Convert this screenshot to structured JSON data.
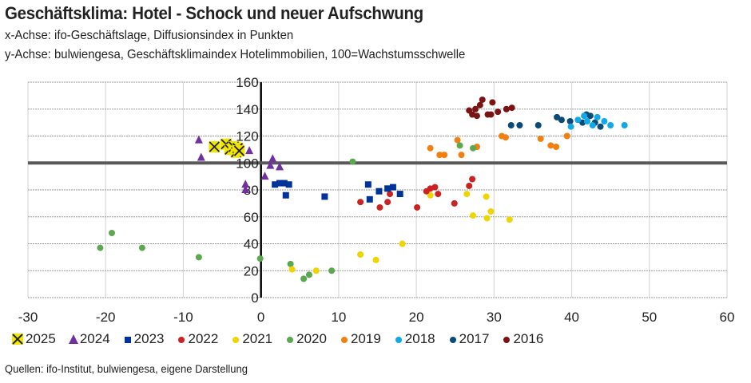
{
  "title": "Geschäftsklima: Hotel - Schock und neuer Aufschwung",
  "subtitle_x": "x-Achse: ifo-Geschäftslage, Diffusionsindex in Punkten",
  "subtitle_y": "y-Achse: bulwiengesa, Geschäftsklimaindex Hotelimmobilien, 100=Wachstumsschwelle",
  "source": "Quellen: ifo-Institut, bulwiengesa, eigene Darstellung",
  "chart_data": {
    "type": "scatter",
    "title": "Geschäftsklima: Hotel - Schock und neuer Aufschwung",
    "xlabel": "ifo-Geschäftslage, Diffusionsindex in Punkten",
    "ylabel": "bulwiengesa, Geschäftsklimaindex Hotelimmobilien, 100=Wachstumsschwelle",
    "xlim": [
      -30,
      60
    ],
    "ylim": [
      0,
      160
    ],
    "x_ticks": [
      "-30",
      "-20",
      "-10",
      "0",
      "10",
      "20",
      "30",
      "40",
      "50",
      "60"
    ],
    "y_ticks": [
      "0",
      "20",
      "40",
      "60",
      "80",
      "100",
      "120",
      "140",
      "160"
    ],
    "reference_line_y": 100,
    "grid": true,
    "legend_position": "bottom",
    "series": [
      {
        "name": "2025",
        "color": "#f2e600",
        "marker": "x",
        "points": [
          [
            -6,
            112
          ],
          [
            -4.5,
            114
          ],
          [
            -4,
            110
          ],
          [
            -3.5,
            112
          ],
          [
            -3.2,
            108
          ],
          [
            -3,
            111
          ],
          [
            -2.8,
            109
          ]
        ]
      },
      {
        "name": "2024",
        "color": "#7030a0",
        "marker": "triangle",
        "points": [
          [
            -8,
            117
          ],
          [
            -7.7,
            104
          ],
          [
            -6,
            113
          ],
          [
            -3,
            107
          ],
          [
            -1.5,
            109
          ],
          [
            -2,
            84
          ],
          [
            -2,
            80
          ],
          [
            0.5,
            90
          ],
          [
            1.5,
            103
          ],
          [
            1.2,
            98
          ],
          [
            2.4,
            97
          ]
        ]
      },
      {
        "name": "2023",
        "color": "#003399",
        "marker": "square",
        "points": [
          [
            1.8,
            84
          ],
          [
            2.4,
            85
          ],
          [
            3,
            85
          ],
          [
            3.6,
            84
          ],
          [
            3.2,
            76
          ],
          [
            8.2,
            75
          ],
          [
            13.8,
            84
          ],
          [
            14,
            73
          ],
          [
            15.2,
            79
          ],
          [
            16.3,
            81
          ],
          [
            17,
            82
          ],
          [
            17.9,
            77
          ]
        ]
      },
      {
        "name": "2022",
        "color": "#cc2222",
        "marker": "circle",
        "points": [
          [
            12.8,
            71
          ],
          [
            15.3,
            67
          ],
          [
            16.3,
            71
          ],
          [
            16.6,
            77
          ],
          [
            20.1,
            67
          ],
          [
            21.3,
            79
          ],
          [
            21.8,
            81
          ],
          [
            22.4,
            82
          ],
          [
            22.8,
            77
          ],
          [
            24.9,
            70
          ],
          [
            27.2,
            88
          ],
          [
            26.8,
            83
          ]
        ]
      },
      {
        "name": "2021",
        "color": "#eed500",
        "marker": "circle",
        "points": [
          [
            4,
            21
          ],
          [
            7.1,
            20
          ],
          [
            12.8,
            32
          ],
          [
            14.8,
            28
          ],
          [
            18.2,
            40
          ],
          [
            21.8,
            76
          ],
          [
            26.5,
            77
          ],
          [
            27.3,
            61
          ],
          [
            29,
            75
          ],
          [
            29.1,
            59
          ],
          [
            29.6,
            64
          ],
          [
            32,
            58
          ]
        ]
      },
      {
        "name": "2020",
        "color": "#5ba84e",
        "marker": "circle",
        "points": [
          [
            -20.7,
            37
          ],
          [
            -19.2,
            48
          ],
          [
            -15.3,
            37
          ],
          [
            -8,
            30
          ],
          [
            -0.1,
            29
          ],
          [
            3.8,
            25
          ],
          [
            5.5,
            14
          ],
          [
            6.2,
            17
          ],
          [
            9.1,
            20
          ],
          [
            11.8,
            101
          ],
          [
            25.6,
            113
          ],
          [
            27.3,
            111
          ]
        ]
      },
      {
        "name": "2019",
        "color": "#f08010",
        "marker": "circle",
        "points": [
          [
            21.8,
            111
          ],
          [
            23,
            106
          ],
          [
            23.6,
            106
          ],
          [
            25.3,
            117
          ],
          [
            25.8,
            106
          ],
          [
            27.8,
            112
          ],
          [
            31,
            120
          ],
          [
            31.5,
            119
          ],
          [
            36,
            118
          ],
          [
            37.3,
            113
          ],
          [
            38,
            112
          ],
          [
            39.4,
            120
          ]
        ]
      },
      {
        "name": "2018",
        "color": "#10a8e8",
        "marker": "circle",
        "points": [
          [
            39.9,
            127
          ],
          [
            40.8,
            132
          ],
          [
            41.6,
            135
          ],
          [
            42,
            131
          ],
          [
            42.7,
            128
          ],
          [
            43.3,
            134
          ],
          [
            44.2,
            131
          ],
          [
            45,
            128
          ],
          [
            46.8,
            128
          ]
        ]
      },
      {
        "name": "2017",
        "color": "#0a4a78",
        "marker": "circle",
        "points": [
          [
            32.2,
            128
          ],
          [
            33.3,
            128
          ],
          [
            35.7,
            128
          ],
          [
            38.1,
            134
          ],
          [
            38.7,
            132
          ],
          [
            39.8,
            131
          ],
          [
            41.4,
            130
          ],
          [
            41.9,
            136
          ],
          [
            42.4,
            135
          ],
          [
            43,
            130
          ],
          [
            43.7,
            127
          ]
        ]
      },
      {
        "name": "2016",
        "color": "#7a1414",
        "marker": "circle",
        "points": [
          [
            26.8,
            139
          ],
          [
            27.2,
            136
          ],
          [
            27.6,
            140
          ],
          [
            28.2,
            143
          ],
          [
            28.5,
            147
          ],
          [
            27.8,
            135
          ],
          [
            29.2,
            136
          ],
          [
            29.6,
            136
          ],
          [
            29.8,
            145
          ],
          [
            30.5,
            138
          ],
          [
            31.6,
            140
          ],
          [
            32.3,
            141
          ]
        ]
      }
    ]
  }
}
